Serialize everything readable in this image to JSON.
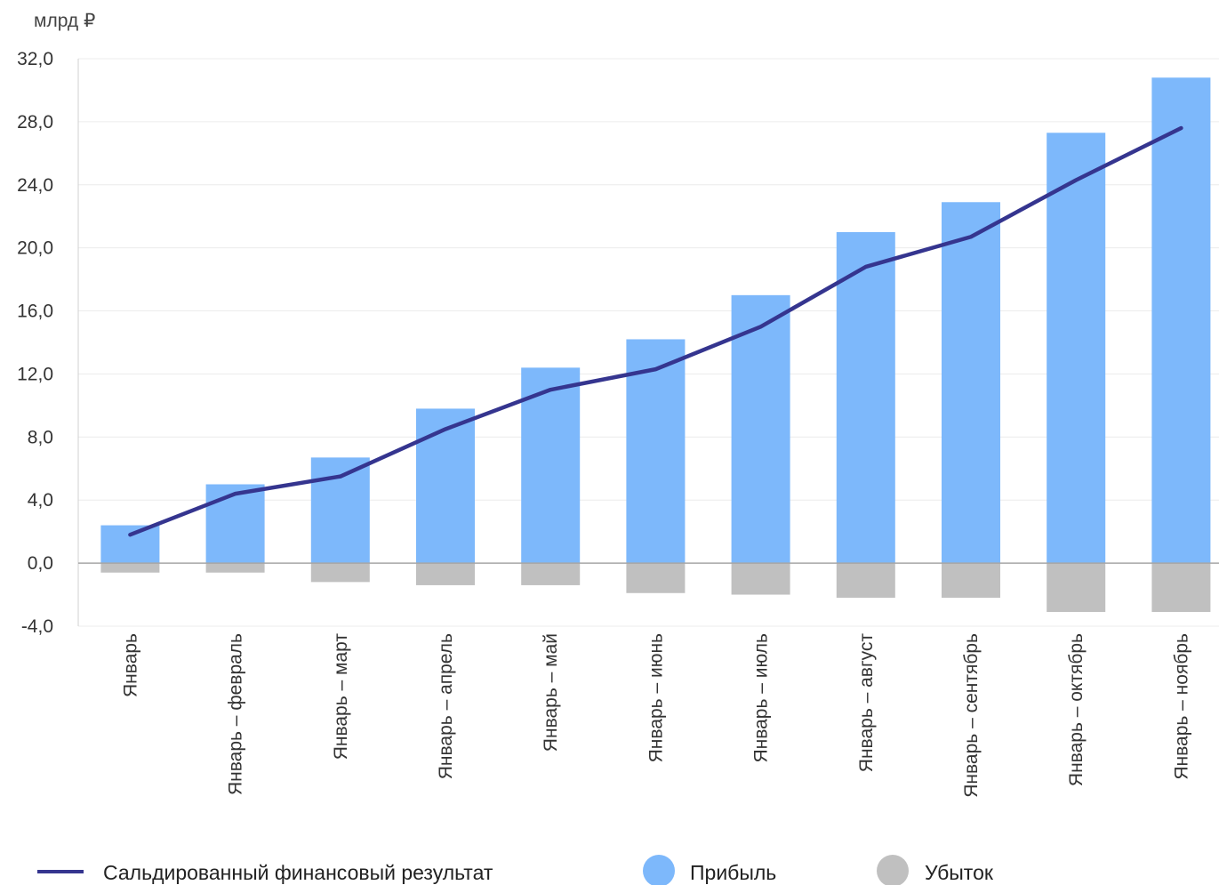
{
  "chart_data": {
    "type": "bar",
    "unit_label": "млрд ₽",
    "categories": [
      "Январь",
      "Январь – февраль",
      "Январь – март",
      "Январь – апрель",
      "Январь – май",
      "Январь – июнь",
      "Январь – июль",
      "Январь – август",
      "Январь – сентябрь",
      "Январь – октябрь",
      "Январь – ноябрь"
    ],
    "series": [
      {
        "name": "Прибыль",
        "kind": "bar",
        "color": "#7db8fb",
        "values": [
          2.4,
          5.0,
          6.7,
          9.8,
          12.4,
          14.2,
          17.0,
          21.0,
          22.9,
          27.3,
          30.8
        ]
      },
      {
        "name": "Убыток",
        "kind": "bar",
        "color": "#c0c0c0",
        "values": [
          -0.6,
          -0.6,
          -1.2,
          -1.4,
          -1.4,
          -1.9,
          -2.0,
          -2.2,
          -2.2,
          -3.1,
          -3.1
        ]
      },
      {
        "name": "Сальдированный финансовый результат",
        "kind": "line",
        "color": "#35358f",
        "values": [
          1.8,
          4.4,
          5.5,
          8.5,
          11.0,
          12.3,
          15.0,
          18.8,
          20.7,
          24.3,
          27.6
        ]
      }
    ],
    "ylim": [
      -4,
      32
    ],
    "yticks": [
      -4,
      0,
      4,
      8,
      12,
      16,
      20,
      24,
      28,
      32
    ],
    "ytick_labels": [
      "-4,0",
      "0,0",
      "4,0",
      "8,0",
      "12,0",
      "16,0",
      "20,0",
      "24,0",
      "28,0",
      "32,0"
    ],
    "grid": true,
    "legend_position": "bottom"
  }
}
